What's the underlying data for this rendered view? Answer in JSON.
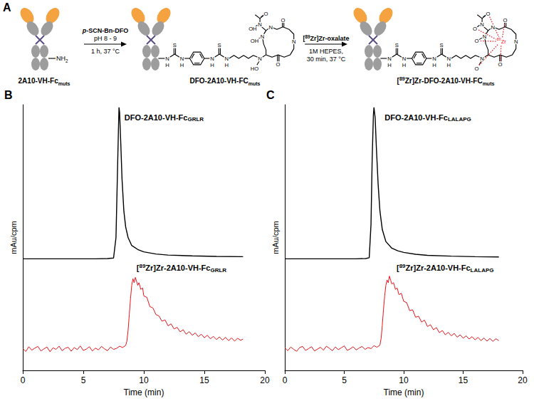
{
  "diagram": {
    "panel_label": "A",
    "species": [
      {
        "label": "2A10-VH-Fcmuts",
        "group": "NH2"
      },
      {
        "label": "DFO-2A10-VH-FCmuts",
        "atoms": [
          "N",
          "H",
          "S",
          "N",
          "H",
          "N",
          "H",
          "S",
          "N",
          "H",
          "N",
          "HO",
          "O",
          "N",
          "O",
          "N",
          "N",
          "OH",
          "N",
          "OH",
          "O"
        ]
      },
      {
        "label": "[89Zr]Zr-DFO-2A10-VH-FCmuts",
        "atoms": [
          "N",
          "H",
          "S",
          "N",
          "H",
          "N",
          "H",
          "S",
          "N",
          "H",
          "N",
          "O",
          "O",
          "N",
          "O",
          "N",
          "N",
          "O",
          "N",
          "O",
          "O"
        ],
        "metal": "89Zr"
      }
    ],
    "steps": [
      {
        "above": [
          "p-SCN-Bn-DFO",
          "pH 8 - 9"
        ],
        "below": [
          "1 h, 37 °C"
        ]
      },
      {
        "above": [
          "[89Zr]Zr-oxalate"
        ],
        "below": [
          "1M HEPES,",
          "30 min, 37 °C"
        ]
      }
    ]
  },
  "chart_data": [
    {
      "type": "line",
      "panel_label": "B",
      "xlabel": "Time (min)",
      "ylabel": "mAu/cpm",
      "xlim": [
        0,
        20
      ],
      "xticks": [
        0,
        5,
        10,
        15,
        20
      ],
      "ylim": [
        0,
        100
      ],
      "yticks": [],
      "tick_labels": "x",
      "grid": false,
      "series": [
        {
          "name": "DFO-2A10-VH-FcGRLR",
          "color": "#000000",
          "x": [
            0,
            2,
            4,
            6,
            7,
            7.5,
            7.7,
            7.8,
            7.9,
            7.95,
            8.0,
            8.1,
            8.2,
            8.35,
            8.5,
            8.7,
            9.0,
            9.5,
            10,
            11,
            12,
            14,
            16,
            18.2
          ],
          "values": [
            42,
            42,
            42,
            42,
            42.1,
            42.3,
            50,
            70,
            90,
            99,
            97,
            85,
            72,
            60,
            54,
            50,
            47,
            45.5,
            44.6,
            43.8,
            43.4,
            43.1,
            42.9,
            42.8
          ]
        },
        {
          "name": "[89Zr]Zr-2A10-VH-FcGRLR",
          "color": "#e8141b",
          "x": [
            0,
            0.25,
            0.5,
            0.75,
            1,
            1.25,
            1.5,
            1.75,
            2,
            2.25,
            2.5,
            2.75,
            3,
            3.25,
            3.5,
            3.75,
            4,
            4.25,
            4.5,
            4.75,
            5,
            5.25,
            5.5,
            5.75,
            6,
            6.25,
            6.5,
            6.75,
            7,
            7.25,
            7.5,
            7.75,
            8,
            8.25,
            8.5,
            8.6,
            8.7,
            8.8,
            8.9,
            9.0,
            9.1,
            9.2,
            9.3,
            9.4,
            9.5,
            9.6,
            9.75,
            9.9,
            10,
            10.25,
            10.5,
            10.75,
            11,
            11.25,
            11.5,
            11.75,
            12,
            12.25,
            12.5,
            12.75,
            13,
            13.25,
            13.5,
            13.75,
            14,
            14.25,
            14.5,
            14.75,
            15,
            15.25,
            15.5,
            15.75,
            16,
            16.25,
            16.5,
            16.75,
            17,
            17.25,
            17.5,
            17.75,
            18,
            18.2
          ],
          "values": [
            8.2,
            7.1,
            8.9,
            7.6,
            8.4,
            9.0,
            7.3,
            8.1,
            8.8,
            7.0,
            8.5,
            7.9,
            9.1,
            7.4,
            8.3,
            8.7,
            7.2,
            8.6,
            7.8,
            9.2,
            7.5,
            8.0,
            8.9,
            7.3,
            8.4,
            7.7,
            9.0,
            8.1,
            7.4,
            8.8,
            7.9,
            8.3,
            9.1,
            8.6,
            9.4,
            11,
            15,
            21,
            27,
            32,
            34.5,
            33,
            35,
            33.5,
            32,
            33,
            30.5,
            31,
            28,
            27.5,
            24,
            23.5,
            21,
            20.5,
            18.5,
            19,
            16.8,
            17.5,
            15.6,
            16.2,
            14.5,
            15.3,
            13.6,
            14.6,
            13.2,
            14.1,
            12.7,
            13.6,
            12.3,
            13.2,
            11.9,
            12.8,
            11.6,
            12.6,
            11.4,
            12.4,
            11.2,
            12.2,
            11.0,
            12.1,
            11.3,
            11.8
          ]
        }
      ]
    },
    {
      "type": "line",
      "panel_label": "C",
      "xlabel": "Time (min)",
      "ylabel": "mAu/cpm",
      "xlim": [
        0,
        20
      ],
      "xticks": [
        0,
        5,
        10,
        15,
        20
      ],
      "ylim": [
        0,
        100
      ],
      "yticks": [],
      "tick_labels": "x",
      "grid": false,
      "series": [
        {
          "name": "DFO-2A10-VH-FcLALAPG",
          "color": "#000000",
          "x": [
            0,
            2,
            4,
            6,
            6.8,
            7.1,
            7.25,
            7.35,
            7.45,
            7.5,
            7.6,
            7.7,
            7.85,
            8.0,
            8.2,
            8.5,
            9,
            9.5,
            10,
            11,
            12,
            14,
            16,
            18
          ],
          "values": [
            42,
            42,
            42,
            42,
            42.1,
            42.4,
            55,
            80,
            96,
            99,
            95,
            84,
            70,
            60,
            53,
            48.5,
            46,
            45,
            44.4,
            43.7,
            43.3,
            43,
            42.8,
            42.7
          ]
        },
        {
          "name": "[89Zr]Zr-2A10-VH-FcLALAPG",
          "color": "#e8141b",
          "x": [
            0,
            0.25,
            0.5,
            0.75,
            1,
            1.25,
            1.5,
            1.75,
            2,
            2.25,
            2.5,
            2.75,
            3,
            3.25,
            3.5,
            3.75,
            4,
            4.25,
            4.5,
            4.75,
            5,
            5.25,
            5.5,
            5.75,
            6,
            6.25,
            6.5,
            6.75,
            7,
            7.25,
            7.5,
            7.75,
            8,
            8.1,
            8.2,
            8.3,
            8.4,
            8.5,
            8.6,
            8.7,
            8.8,
            8.9,
            9.0,
            9.15,
            9.3,
            9.45,
            9.6,
            9.8,
            10,
            10.25,
            10.5,
            10.75,
            11,
            11.25,
            11.5,
            11.75,
            12,
            12.25,
            12.5,
            12.75,
            13,
            13.25,
            13.5,
            13.75,
            14,
            14.25,
            14.5,
            14.75,
            15,
            15.25,
            15.5,
            15.75,
            16,
            16.25,
            16.5,
            16.75,
            17,
            17.25,
            17.5,
            17.75,
            18
          ],
          "values": [
            8.5,
            7.4,
            8.8,
            7.9,
            7.2,
            8.6,
            9.0,
            7.5,
            8.2,
            8.9,
            7.3,
            8.0,
            8.7,
            7.6,
            9.1,
            8.3,
            7.4,
            8.8,
            7.8,
            8.5,
            9.2,
            7.5,
            8.1,
            8.9,
            7.7,
            8.4,
            9.0,
            7.9,
            8.6,
            8.2,
            9.3,
            8.7,
            9.5,
            12,
            17,
            23,
            28,
            32,
            34,
            33,
            35.5,
            34,
            32.5,
            33,
            30.5,
            31,
            28.5,
            29,
            26,
            25.5,
            22.5,
            22.8,
            20,
            20.4,
            18.2,
            18.9,
            16.5,
            17.2,
            15.3,
            16.1,
            14.2,
            15,
            13.4,
            14.3,
            13,
            13.9,
            12.5,
            13.4,
            12.1,
            13,
            11.8,
            12.7,
            11.5,
            12.4,
            11.2,
            12.2,
            11,
            12,
            10.9,
            11.9,
            11.2
          ]
        }
      ]
    }
  ]
}
